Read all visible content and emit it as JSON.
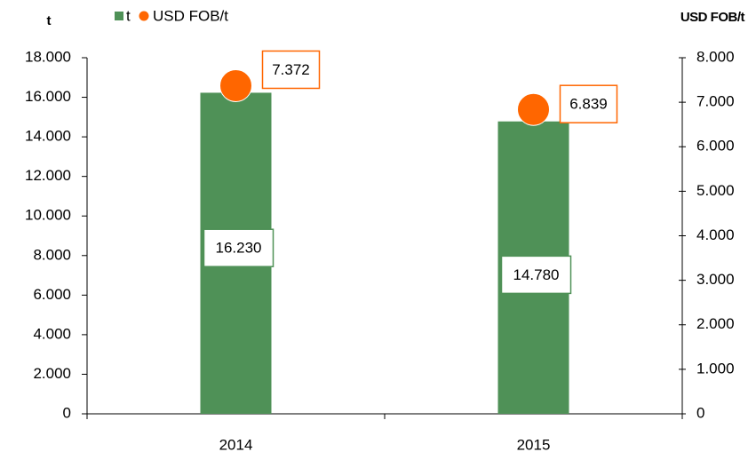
{
  "chart_data": {
    "type": "bar",
    "ylabel": "t",
    "y2label": "USD FOB/t",
    "categories": [
      "2014",
      "2015"
    ],
    "series": [
      {
        "name": "t",
        "type": "bar",
        "color": "#4f9157",
        "values": [
          16230,
          14780
        ],
        "value_labels": [
          "16.230",
          "14.780"
        ]
      },
      {
        "name": "USD FOB/t",
        "type": "scatter",
        "color": "#ff6600",
        "axis": "y2",
        "values": [
          7372,
          6839
        ],
        "value_labels": [
          "7.372",
          "6.839"
        ]
      }
    ],
    "ylim": [
      0,
      18000
    ],
    "yticks": [
      {
        "value": 0,
        "label": "0"
      },
      {
        "value": 2000,
        "label": "2.000"
      },
      {
        "value": 4000,
        "label": "4.000"
      },
      {
        "value": 6000,
        "label": "6.000"
      },
      {
        "value": 8000,
        "label": "8.000"
      },
      {
        "value": 10000,
        "label": "10.000"
      },
      {
        "value": 12000,
        "label": "12.000"
      },
      {
        "value": 14000,
        "label": "14.000"
      },
      {
        "value": 16000,
        "label": "16.000"
      },
      {
        "value": 18000,
        "label": "18.000"
      }
    ],
    "y2lim": [
      0,
      8000
    ],
    "y2ticks": [
      {
        "value": 0,
        "label": "0"
      },
      {
        "value": 1000,
        "label": "1.000"
      },
      {
        "value": 2000,
        "label": "2.000"
      },
      {
        "value": 3000,
        "label": "3.000"
      },
      {
        "value": 4000,
        "label": "4.000"
      },
      {
        "value": 5000,
        "label": "5.000"
      },
      {
        "value": 6000,
        "label": "6.000"
      },
      {
        "value": 7000,
        "label": "7.000"
      },
      {
        "value": 8000,
        "label": "8.000"
      }
    ],
    "grid": false
  }
}
